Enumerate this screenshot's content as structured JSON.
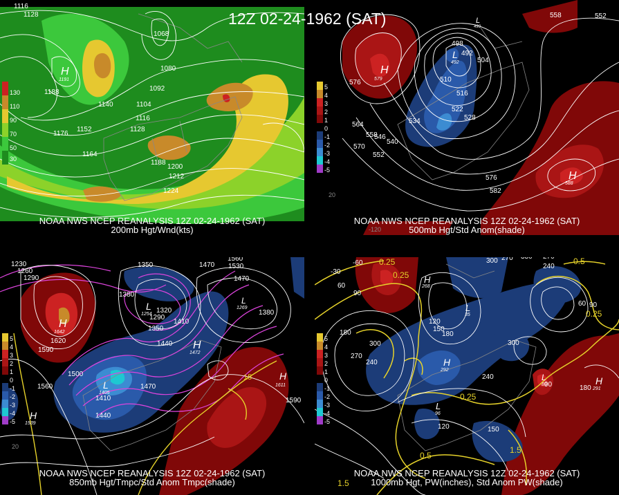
{
  "title": "12Z 02-24-1962 (SAT)",
  "panels": [
    {
      "id": "p200",
      "caption_line1": "NOAA NWS NCEP REANALYSIS 12Z 02-24-1962 (SAT)",
      "caption_line2": "200mb Hgt/Wnd(kts)",
      "legend": [
        {
          "label": "130",
          "color": "#cc2222"
        },
        {
          "label": "110",
          "color": "#c88a2a"
        },
        {
          "label": "90",
          "color": "#e6c830"
        },
        {
          "label": "70",
          "color": "#8cd22a"
        },
        {
          "label": "50",
          "color": "#3cc83c"
        },
        {
          "label": "30",
          "color": "#1e8c1e"
        }
      ],
      "contour_labels": [
        "1116",
        "1128",
        "1068",
        "1080",
        "1092",
        "1104",
        "1116",
        "1128",
        "1140",
        "1152",
        "1164",
        "1176",
        "1188",
        "1188",
        "1200",
        "1212",
        "1224"
      ],
      "centers": [
        {
          "letter": "H",
          "value": "1191"
        }
      ]
    },
    {
      "id": "p500",
      "caption_line1": "NOAA NWS NCEP REANALYSIS 12Z 02-24-1962 (SAT)",
      "caption_line2": "500mb Hgt/Std Anom(shade)",
      "legend": [
        {
          "label": "5",
          "color": "#e6c830"
        },
        {
          "label": "4",
          "color": "#c88a2a"
        },
        {
          "label": "3",
          "color": "#cc2222"
        },
        {
          "label": "2",
          "color": "#aa1515"
        },
        {
          "label": "1",
          "color": "#800808"
        },
        {
          "label": "0",
          "color": "#000000"
        },
        {
          "label": "-1",
          "color": "#1c3c78"
        },
        {
          "label": "-2",
          "color": "#2a5aaa"
        },
        {
          "label": "-3",
          "color": "#3c8cd2"
        },
        {
          "label": "-4",
          "color": "#1ec8d2"
        },
        {
          "label": "-5",
          "color": "#a03cc8"
        }
      ],
      "contour_labels": [
        "558",
        "552",
        "498",
        "492",
        "504",
        "510",
        "516",
        "522",
        "528",
        "534",
        "540",
        "546",
        "552",
        "558",
        "564",
        "570",
        "576",
        "576",
        "582",
        "20",
        "-120"
      ],
      "centers": [
        {
          "letter": "H",
          "value": "579"
        },
        {
          "letter": "L",
          "value": "492"
        },
        {
          "letter": "H",
          "value": "588"
        },
        {
          "letter": "L",
          "value": "493"
        }
      ]
    },
    {
      "id": "p850",
      "caption_line1": "NOAA NWS NCEP REANALYSIS 12Z 02-24-1962 (SAT)",
      "caption_line2": "850mb Hgt/Tmpc/Std Anom Tmpc(shade)",
      "legend": [
        {
          "label": "5",
          "color": "#e6c830"
        },
        {
          "label": "4",
          "color": "#c88a2a"
        },
        {
          "label": "3",
          "color": "#cc2222"
        },
        {
          "label": "2",
          "color": "#aa1515"
        },
        {
          "label": "1",
          "color": "#800808"
        },
        {
          "label": "0",
          "color": "#000000"
        },
        {
          "label": "-1",
          "color": "#1c3c78"
        },
        {
          "label": "-2",
          "color": "#2a5aaa"
        },
        {
          "label": "-3",
          "color": "#3c8cd2"
        },
        {
          "label": "-4",
          "color": "#1ec8d2"
        },
        {
          "label": "-5",
          "color": "#a03cc8"
        }
      ],
      "contour_labels": [
        "1230",
        "1260",
        "1290",
        "1350",
        "1380",
        "1470",
        "1560",
        "1530",
        "1470",
        "1320",
        "1290",
        "1350",
        "1380",
        "1410",
        "1440",
        "1500",
        "1410",
        "1440",
        "1470",
        "1590",
        "1620",
        "1560",
        "1590",
        "20",
        "15"
      ],
      "centers": [
        {
          "letter": "H",
          "value": "1642"
        },
        {
          "letter": "L",
          "value": "1254"
        },
        {
          "letter": "H",
          "value": "1472"
        },
        {
          "letter": "L",
          "value": "1405"
        },
        {
          "letter": "H",
          "value": "1539"
        },
        {
          "letter": "H",
          "value": "1611"
        },
        {
          "letter": "L",
          "value": "1269"
        }
      ]
    },
    {
      "id": "p1000",
      "caption_line1": "NOAA NWS NCEP REANALYSIS 12Z 02-24-1962 (SAT)",
      "caption_line2": "1000mb Hgt, PW(inches), Std Anom PW(shade)",
      "legend": [
        {
          "label": "5",
          "color": "#e6c830"
        },
        {
          "label": "4",
          "color": "#c88a2a"
        },
        {
          "label": "3",
          "color": "#cc2222"
        },
        {
          "label": "2",
          "color": "#aa1515"
        },
        {
          "label": "1",
          "color": "#800808"
        },
        {
          "label": "0",
          "color": "#000000"
        },
        {
          "label": "-1",
          "color": "#1c3c78"
        },
        {
          "label": "-2",
          "color": "#2a5aaa"
        },
        {
          "label": "-3",
          "color": "#3c8cd2"
        },
        {
          "label": "-4",
          "color": "#1ec8d2"
        },
        {
          "label": "-5",
          "color": "#a03cc8"
        }
      ],
      "contour_labels": [
        "-60",
        "-30",
        "0.25",
        "0.25",
        "60",
        "90",
        "180",
        "300",
        "270",
        "240",
        "120",
        "150",
        "180",
        "300",
        "270",
        "240",
        "330",
        "270",
        "240",
        "120",
        "150",
        "300",
        "90",
        "180",
        "0.25",
        "0.5",
        "0.5",
        "1.5",
        "1.5",
        "0.25",
        "60",
        "90"
      ],
      "centers": [
        {
          "letter": "H",
          "value": "268"
        },
        {
          "letter": "L",
          "value": "35"
        },
        {
          "letter": "H",
          "value": "292"
        },
        {
          "letter": "L",
          "value": "96"
        },
        {
          "letter": "H",
          "value": "291"
        },
        {
          "letter": "L",
          "value": "80"
        }
      ]
    }
  ],
  "colors": {
    "background": "#000000",
    "contour_white": "#ffffff",
    "temperature_contour": "#dd44dd",
    "pw_contour": "#e6d22a",
    "geography": "#888888"
  }
}
